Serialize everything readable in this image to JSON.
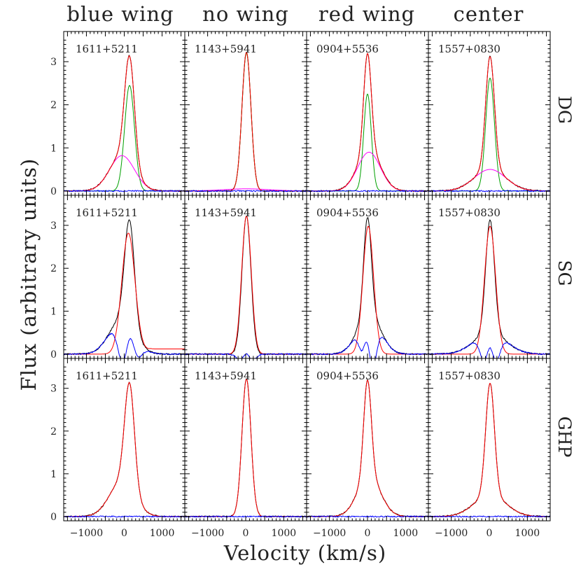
{
  "chart_data": {
    "type": "line",
    "xlabel": "Velocity (km/s)",
    "ylabel": "Flux (arbitrary units)",
    "columns": [
      "blue wing",
      "no wing",
      "red wing",
      "center"
    ],
    "rows": [
      "DG",
      "SG",
      "GHP"
    ],
    "objects": [
      "1611+5211",
      "1143+5941",
      "0904+5536",
      "1557+0830"
    ],
    "xlim": [
      -1600,
      1600
    ],
    "ylim": [
      -0.1,
      3.7
    ],
    "xticks": [
      -1000,
      0,
      1000
    ],
    "xtick_labels": [
      "−1000",
      "0",
      "1000"
    ],
    "yticks": [
      0,
      1,
      2,
      3
    ],
    "series_colors": {
      "observed": "#000000",
      "total_fit": "#ff0000",
      "narrow_component": "#00a000",
      "broad_component": "#ff00ff",
      "residual": "#0000ff"
    },
    "panels": [
      {
        "row": "DG",
        "column": "blue wing",
        "object": "1611+5211",
        "observed": {
          "narrow": {
            "A": 2.45,
            "mu": 140,
            "sigma": 130
          },
          "broad": {
            "A": 0.82,
            "mu": -60,
            "sigma": 330
          }
        },
        "fit": {
          "narrow": {
            "A": 2.45,
            "mu": 140,
            "sigma": 130
          },
          "broad": {
            "A": 0.82,
            "mu": -60,
            "sigma": 330
          }
        },
        "components": [
          {
            "kind": "narrow",
            "A": 2.45,
            "mu": 140,
            "sigma": 130
          },
          {
            "kind": "broad",
            "A": 0.82,
            "mu": -60,
            "sigma": 330
          }
        ]
      },
      {
        "row": "DG",
        "column": "no wing",
        "object": "1143+5941",
        "observed": {
          "narrow": {
            "A": 3.22,
            "mu": 20,
            "sigma": 118
          }
        },
        "fit": {
          "narrow": {
            "A": 3.22,
            "mu": 20,
            "sigma": 118
          }
        },
        "components": [
          {
            "kind": "narrow",
            "A": 3.2,
            "mu": 20,
            "sigma": 118
          },
          {
            "kind": "broad",
            "A": 0.05,
            "mu": 20,
            "sigma": 600
          }
        ]
      },
      {
        "row": "DG",
        "column": "red wing",
        "object": "0904+5536",
        "observed": {
          "narrow": {
            "A": 2.25,
            "mu": 0,
            "sigma": 100
          },
          "broad": {
            "A": 0.95,
            "mu": 40,
            "sigma": 300
          }
        },
        "fit": {
          "narrow": {
            "A": 2.25,
            "mu": 0,
            "sigma": 100
          },
          "broad": {
            "A": 0.95,
            "mu": 40,
            "sigma": 300
          }
        },
        "components": [
          {
            "kind": "narrow",
            "A": 2.25,
            "mu": 0,
            "sigma": 100
          },
          {
            "kind": "broad",
            "A": 0.9,
            "mu": 40,
            "sigma": 300
          }
        ]
      },
      {
        "row": "DG",
        "column": "center",
        "object": "1557+0830",
        "observed": {
          "narrow": {
            "A": 2.62,
            "mu": 20,
            "sigma": 115
          },
          "broad": {
            "A": 0.5,
            "mu": 20,
            "sigma": 420
          }
        },
        "fit": {
          "narrow": {
            "A": 2.62,
            "mu": 20,
            "sigma": 115
          },
          "broad": {
            "A": 0.5,
            "mu": 20,
            "sigma": 420
          }
        },
        "components": [
          {
            "kind": "narrow",
            "A": 2.62,
            "mu": 20,
            "sigma": 115
          },
          {
            "kind": "broad",
            "A": 0.5,
            "mu": 20,
            "sigma": 420
          }
        ]
      },
      {
        "row": "SG",
        "column": "blue wing",
        "object": "1611+5211",
        "observed": {
          "narrow": {
            "A": 2.45,
            "mu": 140,
            "sigma": 130
          },
          "broad": {
            "A": 0.82,
            "mu": -60,
            "sigma": 330
          }
        },
        "fit": {
          "narrow": {
            "A": 2.82,
            "mu": 110,
            "sigma": 175
          }
        },
        "fit_floor": 0.12,
        "components": []
      },
      {
        "row": "SG",
        "column": "no wing",
        "object": "1143+5941",
        "observed": {
          "narrow": {
            "A": 3.22,
            "mu": 20,
            "sigma": 118
          }
        },
        "fit": {
          "narrow": {
            "A": 3.22,
            "mu": 20,
            "sigma": 125
          }
        },
        "components": []
      },
      {
        "row": "SG",
        "column": "red wing",
        "object": "0904+5536",
        "observed": {
          "narrow": {
            "A": 2.25,
            "mu": 0,
            "sigma": 100
          },
          "broad": {
            "A": 0.95,
            "mu": 40,
            "sigma": 300
          }
        },
        "fit": {
          "narrow": {
            "A": 2.98,
            "mu": 20,
            "sigma": 140
          }
        },
        "components": []
      },
      {
        "row": "SG",
        "column": "center",
        "object": "1557+0830",
        "observed": {
          "narrow": {
            "A": 2.62,
            "mu": 20,
            "sigma": 115
          },
          "broad": {
            "A": 0.5,
            "mu": 20,
            "sigma": 420
          }
        },
        "fit": {
          "narrow": {
            "A": 2.98,
            "mu": 20,
            "sigma": 145
          }
        },
        "components": []
      },
      {
        "row": "GHP",
        "column": "blue wing",
        "object": "1611+5211",
        "observed": {
          "narrow": {
            "A": 2.45,
            "mu": 140,
            "sigma": 130
          },
          "broad": {
            "A": 0.82,
            "mu": -60,
            "sigma": 330
          }
        },
        "fit": {
          "narrow": {
            "A": 2.45,
            "mu": 140,
            "sigma": 130
          },
          "broad": {
            "A": 0.82,
            "mu": -60,
            "sigma": 330
          }
        },
        "components": []
      },
      {
        "row": "GHP",
        "column": "no wing",
        "object": "1143+5941",
        "observed": {
          "narrow": {
            "A": 3.22,
            "mu": 20,
            "sigma": 118
          }
        },
        "fit": {
          "narrow": {
            "A": 3.22,
            "mu": 20,
            "sigma": 118
          }
        },
        "components": []
      },
      {
        "row": "GHP",
        "column": "red wing",
        "object": "0904+5536",
        "observed": {
          "narrow": {
            "A": 2.25,
            "mu": 0,
            "sigma": 100
          },
          "broad": {
            "A": 0.95,
            "mu": 40,
            "sigma": 300
          }
        },
        "fit": {
          "narrow": {
            "A": 2.25,
            "mu": 0,
            "sigma": 100
          },
          "broad": {
            "A": 0.95,
            "mu": 40,
            "sigma": 300
          }
        },
        "components": []
      },
      {
        "row": "GHP",
        "column": "center",
        "object": "1557+0830",
        "observed": {
          "narrow": {
            "A": 2.62,
            "mu": 20,
            "sigma": 115
          },
          "broad": {
            "A": 0.5,
            "mu": 20,
            "sigma": 420
          }
        },
        "fit": {
          "narrow": {
            "A": 2.62,
            "mu": 20,
            "sigma": 115
          },
          "broad": {
            "A": 0.5,
            "mu": 20,
            "sigma": 420
          }
        },
        "components": []
      }
    ]
  }
}
